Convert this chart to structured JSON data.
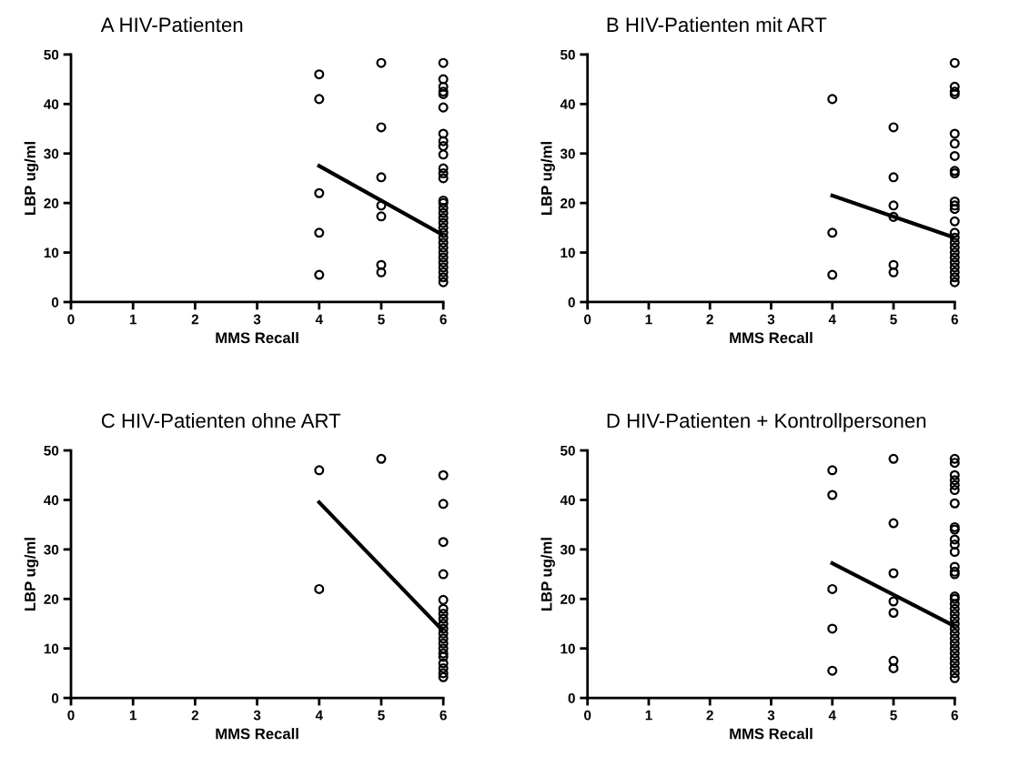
{
  "chart_data": [
    {
      "type": "scatter",
      "title": "A HIV-Patienten",
      "xlabel": "MMS Recall",
      "ylabel": "LBP ug/ml",
      "xlim": [
        0,
        6
      ],
      "ylim": [
        0,
        50
      ],
      "xticks": [
        0,
        1,
        2,
        3,
        4,
        5,
        6
      ],
      "yticks": [
        0,
        10,
        20,
        30,
        40,
        50
      ],
      "marker": "circle",
      "grid": false,
      "legend": false,
      "series": [
        {
          "color": "#000000",
          "x": [
            4,
            4,
            4,
            4,
            4,
            5,
            5,
            5,
            5,
            5,
            5,
            5,
            6,
            6,
            6,
            6,
            6,
            6,
            6,
            6,
            6,
            6,
            6,
            6,
            6,
            6,
            6,
            6,
            6,
            6,
            6,
            6,
            6,
            6,
            6,
            6,
            6,
            6,
            6,
            6,
            6,
            6,
            6
          ],
          "values": [
            46,
            41,
            22,
            14,
            5.5,
            48.3,
            35.3,
            25.2,
            19.5,
            17.3,
            7.5,
            6,
            48.3,
            45,
            43.5,
            42.5,
            42,
            39.3,
            34,
            32.5,
            31.5,
            29.8,
            27,
            26,
            25,
            20.5,
            20,
            19,
            18,
            17,
            16,
            15,
            14,
            13,
            12,
            11,
            10,
            9,
            8,
            7,
            6,
            5,
            4
          ]
        },
        {
          "type": "line",
          "color": "#000000",
          "x": [
            4,
            6
          ],
          "values": [
            27.5,
            13.5
          ],
          "marker": "none"
        }
      ]
    },
    {
      "type": "scatter",
      "title": "B HIV-Patienten mit ART",
      "xlabel": "MMS Recall",
      "ylabel": "LBP ug/ml",
      "xlim": [
        0,
        6
      ],
      "ylim": [
        0,
        50
      ],
      "xticks": [
        0,
        1,
        2,
        3,
        4,
        5,
        6
      ],
      "yticks": [
        0,
        10,
        20,
        30,
        40,
        50
      ],
      "marker": "circle",
      "grid": false,
      "legend": false,
      "series": [
        {
          "color": "#000000",
          "x": [
            4,
            4,
            4,
            5,
            5,
            5,
            5,
            5,
            5,
            6,
            6,
            6,
            6,
            6,
            6,
            6,
            6,
            6,
            6,
            6,
            6,
            6,
            6,
            6,
            6,
            6,
            6,
            6,
            6,
            6,
            6,
            6,
            6
          ],
          "values": [
            41,
            14,
            5.5,
            35.3,
            25.2,
            19.5,
            17.2,
            7.5,
            6,
            48.3,
            43.5,
            42.5,
            42,
            34,
            32,
            29.5,
            26.5,
            26,
            20.3,
            19.5,
            18.8,
            16.3,
            14,
            13,
            12,
            11,
            10,
            9,
            8,
            7,
            6,
            5,
            4
          ]
        },
        {
          "type": "line",
          "color": "#000000",
          "x": [
            4,
            6
          ],
          "values": [
            21.5,
            13
          ],
          "marker": "none"
        }
      ]
    },
    {
      "type": "scatter",
      "title": "C HIV-Patienten ohne ART",
      "xlabel": "MMS Recall",
      "ylabel": "LBP ug/ml",
      "xlim": [
        0,
        6
      ],
      "ylim": [
        0,
        50
      ],
      "xticks": [
        0,
        1,
        2,
        3,
        4,
        5,
        6
      ],
      "yticks": [
        0,
        10,
        20,
        30,
        40,
        50
      ],
      "marker": "circle",
      "grid": false,
      "legend": false,
      "series": [
        {
          "color": "#000000",
          "x": [
            4,
            4,
            5,
            6,
            6,
            6,
            6,
            6,
            6,
            6,
            6,
            6,
            6,
            6,
            6,
            6,
            6,
            6,
            6,
            6,
            6,
            6,
            6
          ],
          "values": [
            46,
            22,
            48.3,
            45,
            39.2,
            31.5,
            25,
            19.8,
            18,
            17,
            16,
            15,
            14,
            13,
            12,
            11,
            10,
            9,
            8.3,
            7,
            6,
            5,
            4.2
          ]
        },
        {
          "type": "line",
          "color": "#000000",
          "x": [
            4,
            6
          ],
          "values": [
            39.5,
            13.5
          ],
          "marker": "none"
        }
      ]
    },
    {
      "type": "scatter",
      "title": "D HIV-Patienten + Kontrollpersonen",
      "xlabel": "MMS Recall",
      "ylabel": "LBP ug/ml",
      "xlim": [
        0,
        6
      ],
      "ylim": [
        0,
        50
      ],
      "xticks": [
        0,
        1,
        2,
        3,
        4,
        5,
        6
      ],
      "yticks": [
        0,
        10,
        20,
        30,
        40,
        50
      ],
      "marker": "circle",
      "grid": false,
      "legend": false,
      "series": [
        {
          "color": "#000000",
          "x": [
            4,
            4,
            4,
            4,
            4,
            5,
            5,
            5,
            5,
            5,
            5,
            5,
            6,
            6,
            6,
            6,
            6,
            6,
            6,
            6,
            6,
            6,
            6,
            6,
            6,
            6,
            6,
            6,
            6,
            6,
            6,
            6,
            6,
            6,
            6,
            6,
            6,
            6,
            6,
            6,
            6,
            6,
            6,
            6,
            6
          ],
          "values": [
            46,
            41,
            22,
            14,
            5.5,
            48.3,
            35.3,
            25.2,
            19.5,
            17.2,
            7.5,
            6,
            48.3,
            47.5,
            45,
            44,
            43,
            42,
            39.3,
            34.5,
            34,
            32,
            31,
            29.5,
            26.5,
            25.5,
            25,
            20.5,
            20,
            19,
            18,
            17,
            16,
            15,
            14,
            13,
            12,
            11,
            10,
            9,
            8,
            7,
            6,
            5,
            4
          ]
        },
        {
          "type": "line",
          "color": "#000000",
          "x": [
            4,
            6
          ],
          "values": [
            27.2,
            14.5
          ],
          "marker": "none"
        }
      ]
    }
  ]
}
